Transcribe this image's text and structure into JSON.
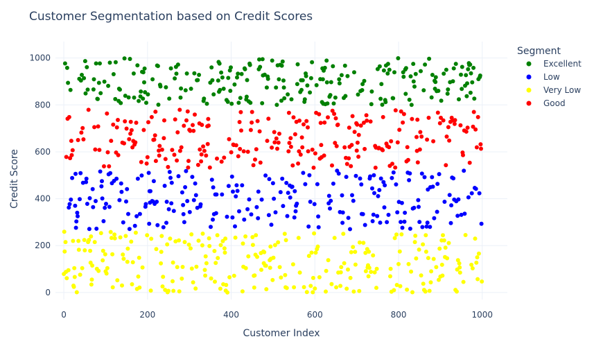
{
  "chart_data": {
    "type": "scatter",
    "title": "Customer Segmentation based on Credit Scores",
    "xlabel": "Customer Index",
    "ylabel": "Credit Score",
    "xlim": [
      -20,
      1060
    ],
    "ylim": [
      -30,
      1070
    ],
    "x_ticks": [
      0,
      200,
      400,
      600,
      800,
      1000
    ],
    "y_ticks": [
      0,
      200,
      400,
      600,
      800,
      1000
    ],
    "grid": true,
    "legend": {
      "title": "Segment",
      "position": "right-top"
    },
    "n_points": 1000,
    "series": [
      {
        "name": "Excellent",
        "color": "#008000",
        "y_range": [
          800,
          1000
        ]
      },
      {
        "name": "Low",
        "color": "#0000ff",
        "y_range": [
          270,
          520
        ]
      },
      {
        "name": "Very Low",
        "color": "#ffff00",
        "y_range": [
          0,
          260
        ]
      },
      {
        "name": "Good",
        "color": "#ff0000",
        "y_range": [
          530,
          780
        ]
      }
    ]
  }
}
